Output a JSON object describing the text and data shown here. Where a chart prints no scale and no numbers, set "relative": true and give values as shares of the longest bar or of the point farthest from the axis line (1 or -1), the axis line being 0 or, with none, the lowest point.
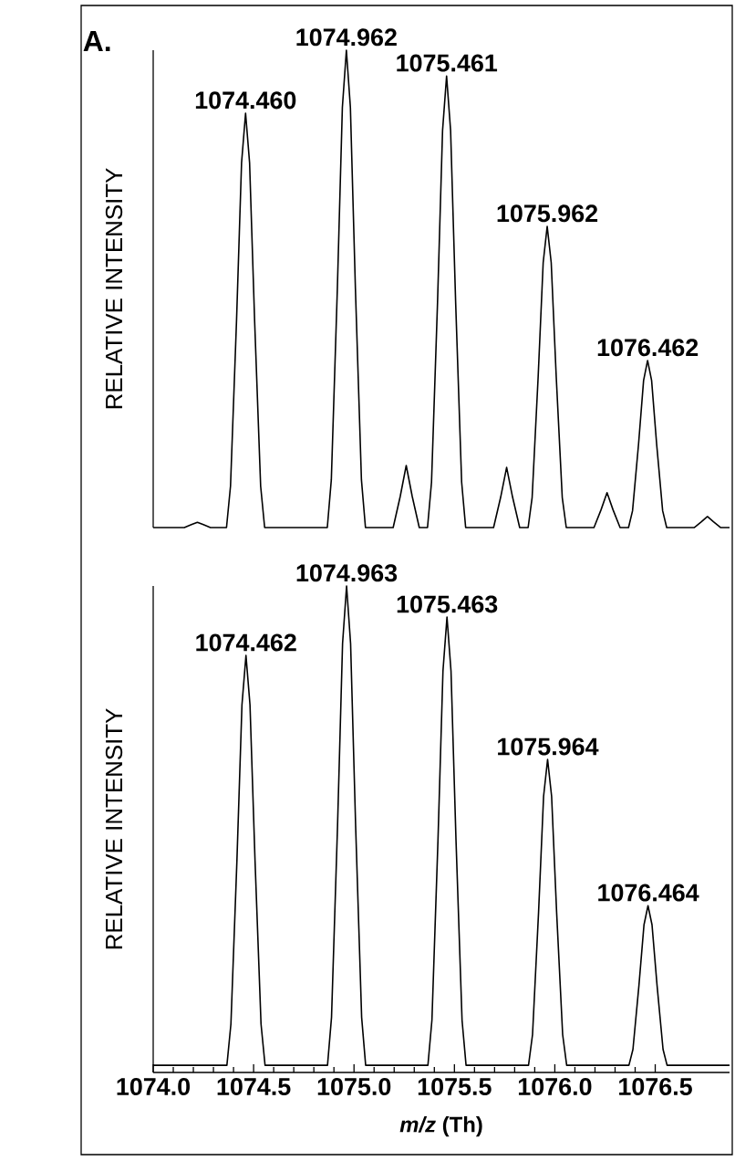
{
  "chart_data": [
    {
      "type": "line",
      "ylabel": "RELATIVE INTENSITY",
      "relative": true,
      "tick_labels": false,
      "xlim": [
        1074.0,
        1076.87
      ],
      "annotations": [
        "A.",
        {
          "text": "1074.460",
          "x": 1074.46,
          "y": 0.868
        },
        {
          "text": "1074.962",
          "x": 1074.962,
          "y": 1
        },
        {
          "text": "1075.461",
          "x": 1075.461,
          "y": 0.946
        },
        {
          "text": "1075.962",
          "x": 1075.962,
          "y": 0.631
        },
        {
          "text": "1076.462",
          "x": 1076.462,
          "y": 0.35
        }
      ],
      "series": [
        {
          "color": "#000000",
          "x": [
            1074.0,
            1074.155,
            1074.19,
            1074.22,
            1074.25,
            1074.285,
            1074.365,
            1074.385,
            1074.415,
            1074.44,
            1074.46,
            1074.48,
            1074.505,
            1074.535,
            1074.555,
            1074.867,
            1074.887,
            1074.917,
            1074.942,
            1074.962,
            1074.982,
            1075.007,
            1075.037,
            1075.057,
            1075.195,
            1075.23,
            1075.26,
            1075.29,
            1075.325,
            1075.366,
            1075.386,
            1075.416,
            1075.441,
            1075.461,
            1075.481,
            1075.506,
            1075.536,
            1075.556,
            1075.695,
            1075.73,
            1075.76,
            1075.79,
            1075.825,
            1075.867,
            1075.887,
            1075.917,
            1075.942,
            1075.962,
            1075.982,
            1076.007,
            1076.037,
            1076.057,
            1076.195,
            1076.23,
            1076.26,
            1076.29,
            1076.325,
            1076.367,
            1076.387,
            1076.417,
            1076.442,
            1076.462,
            1076.482,
            1076.507,
            1076.537,
            1076.557,
            1076.695,
            1076.73,
            1076.76,
            1076.79,
            1076.825,
            1076.87
          ],
          "values": [
            0,
            0,
            0.006,
            0.011,
            0.006,
            0,
            0,
            0.087,
            0.434,
            0.764,
            0.868,
            0.764,
            0.434,
            0.087,
            0,
            0,
            0.1,
            0.5,
            0.88,
            1,
            0.88,
            0.5,
            0.1,
            0,
            0,
            0.065,
            0.13,
            0.065,
            0,
            0,
            0.095,
            0.473,
            0.832,
            0.946,
            0.832,
            0.473,
            0.095,
            0,
            0,
            0.063,
            0.126,
            0.063,
            0,
            0,
            0.063,
            0.316,
            0.555,
            0.631,
            0.555,
            0.316,
            0.063,
            0,
            0,
            0.037,
            0.073,
            0.037,
            0,
            0,
            0.035,
            0.175,
            0.308,
            0.35,
            0.308,
            0.175,
            0.035,
            0,
            0,
            0.012,
            0.023,
            0.012,
            0,
            0
          ]
        }
      ]
    },
    {
      "type": "line",
      "ylabel": "RELATIVE INTENSITY",
      "xlabel": "*m/z*  (Th)",
      "relative": true,
      "tick_labels": "x",
      "xlim": [
        1074.0,
        1076.87
      ],
      "xticks": [
        {
          "value": 1074.0,
          "label": "1074.0"
        },
        1074.5,
        {
          "value": 1075.0,
          "label": "1075.0"
        },
        1075.5,
        {
          "value": 1076.0,
          "label": "1076.0"
        },
        1076.5
      ],
      "annotations": [
        {
          "text": "1074.462",
          "x": 1074.462,
          "y": 0.855
        },
        {
          "text": "1074.963",
          "x": 1074.963,
          "y": 1
        },
        {
          "text": "1075.463",
          "x": 1075.463,
          "y": 0.935
        },
        {
          "text": "1075.964",
          "x": 1075.964,
          "y": 0.638
        },
        {
          "text": "1076.464",
          "x": 1076.464,
          "y": 0.333
        }
      ],
      "series": [
        {
          "color": "#000000",
          "x": [
            1074.0,
            1074.367,
            1074.387,
            1074.417,
            1074.442,
            1074.462,
            1074.482,
            1074.507,
            1074.537,
            1074.557,
            1074.868,
            1074.888,
            1074.918,
            1074.943,
            1074.963,
            1074.983,
            1075.008,
            1075.038,
            1075.058,
            1075.368,
            1075.388,
            1075.418,
            1075.443,
            1075.463,
            1075.483,
            1075.508,
            1075.538,
            1075.558,
            1075.869,
            1075.889,
            1075.919,
            1075.944,
            1075.964,
            1075.984,
            1076.009,
            1076.039,
            1076.059,
            1076.369,
            1076.389,
            1076.419,
            1076.444,
            1076.464,
            1076.484,
            1076.509,
            1076.539,
            1076.559,
            1076.87
          ],
          "values": [
            0,
            0,
            0.086,
            0.428,
            0.752,
            0.855,
            0.752,
            0.428,
            0.086,
            0,
            0,
            0.1,
            0.5,
            0.88,
            1,
            0.88,
            0.5,
            0.1,
            0,
            0,
            0.094,
            0.468,
            0.823,
            0.935,
            0.823,
            0.468,
            0.094,
            0,
            0,
            0.064,
            0.319,
            0.561,
            0.638,
            0.561,
            0.319,
            0.064,
            0,
            0,
            0.033,
            0.167,
            0.293,
            0.333,
            0.293,
            0.167,
            0.033,
            0,
            0
          ]
        }
      ]
    }
  ]
}
